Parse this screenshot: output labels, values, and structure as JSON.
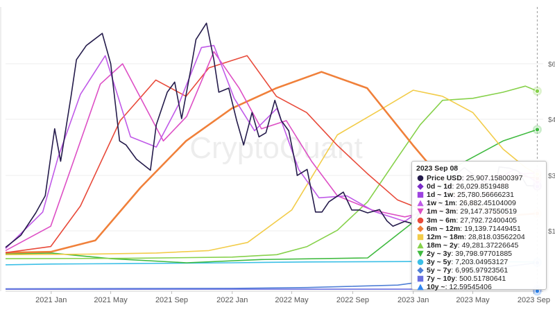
{
  "watermark": "CryptoQuant",
  "chart_data": {
    "type": "line",
    "x_ticks": [
      "2021 Jan",
      "2021 May",
      "2021 Sep",
      "2022 Jan",
      "2022 May",
      "2022 Sep",
      "2023 Jan",
      "2023 May",
      "2023 Sep"
    ],
    "y_right_ticks": [
      "$6",
      "$4",
      "$3",
      "$1"
    ],
    "xlim": [
      "2020-10-01",
      "2023-09-20"
    ],
    "series": [
      {
        "name": "Price USD",
        "color": "#241b4b",
        "marker": "circle",
        "x": [
          "2020-10-01",
          "2020-11-01",
          "2020-12-01",
          "2020-12-20",
          "2021-01-08",
          "2021-01-20",
          "2021-02-10",
          "2021-02-21",
          "2021-03-13",
          "2021-04-14",
          "2021-05-01",
          "2021-05-19",
          "2021-06-01",
          "2021-06-22",
          "2021-07-20",
          "2021-08-01",
          "2021-08-23",
          "2021-09-07",
          "2021-09-21",
          "2021-10-10",
          "2021-10-20",
          "2021-11-10",
          "2021-11-25",
          "2021-12-05",
          "2021-12-25",
          "2022-01-10",
          "2022-01-24",
          "2022-02-10",
          "2022-02-24",
          "2022-03-10",
          "2022-03-28",
          "2022-04-10",
          "2022-04-25",
          "2022-05-09",
          "2022-05-12",
          "2022-06-01",
          "2022-06-18",
          "2022-07-01",
          "2022-07-15",
          "2022-08-13",
          "2022-08-30",
          "2022-09-15",
          "2022-10-01",
          "2022-10-25",
          "2022-11-09",
          "2022-11-21",
          "2022-12-15",
          "2023-01-01",
          "2023-01-20",
          "2023-02-15",
          "2023-03-10",
          "2023-03-20",
          "2023-04-14",
          "2023-05-10",
          "2023-06-15",
          "2023-06-23",
          "2023-07-14",
          "2023-08-01",
          "2023-08-18",
          "2023-09-08"
        ],
        "y": [
          10800,
          13800,
          19300,
          23500,
          40000,
          32000,
          48000,
          57000,
          60500,
          63500,
          56000,
          37000,
          36000,
          32500,
          29800,
          41000,
          49000,
          51500,
          42500,
          55000,
          62000,
          66000,
          57000,
          49000,
          50000,
          42000,
          36000,
          44000,
          38000,
          39000,
          47000,
          42000,
          39500,
          31000,
          28500,
          30000,
          19500,
          19500,
          22000,
          24400,
          20000,
          20000,
          19300,
          20100,
          17300,
          16000,
          17200,
          16600,
          21000,
          23000,
          20000,
          28000,
          30400,
          28000,
          25500,
          30600,
          30300,
          29500,
          26000,
          25907
        ]
      },
      {
        "name": "0d ~ 1d",
        "color": "#7b2cc9",
        "marker": "diamond",
        "x": [
          "2023-09-08"
        ],
        "y": [
          26029.8519488
        ]
      },
      {
        "name": "1d ~ 1w",
        "color": "#9d43e0",
        "marker": "square",
        "x": [
          "2023-09-08"
        ],
        "y": [
          25780.56666231
        ]
      },
      {
        "name": "1w ~ 1m",
        "color": "#c05ae8",
        "marker": "triangle-up",
        "x": [
          "2020-10-01",
          "2020-12-15",
          "2021-01-15",
          "2021-03-01",
          "2021-04-20",
          "2021-06-10",
          "2021-08-01",
          "2021-09-15",
          "2021-10-31",
          "2021-11-25",
          "2022-01-05",
          "2022-02-15",
          "2022-04-01",
          "2022-05-15",
          "2022-06-25",
          "2022-08-20",
          "2022-10-15",
          "2022-12-15",
          "2023-02-15",
          "2023-04-25",
          "2023-06-15",
          "2023-07-25",
          "2023-09-08"
        ],
        "y": [
          10500,
          19500,
          33000,
          48500,
          58000,
          38000,
          35500,
          46000,
          60000,
          60500,
          47500,
          39500,
          45000,
          30000,
          23000,
          23500,
          19600,
          17200,
          22500,
          28800,
          27500,
          30000,
          26882
        ]
      },
      {
        "name": "1m ~ 3m",
        "color": "#dd4fc5",
        "marker": "triangle-down",
        "x": [
          "2020-10-01",
          "2020-12-31",
          "2021-02-15",
          "2021-04-10",
          "2021-05-25",
          "2021-08-15",
          "2021-10-01",
          "2021-11-25",
          "2022-01-15",
          "2022-03-01",
          "2022-04-20",
          "2022-06-10",
          "2022-08-01",
          "2022-10-10",
          "2022-12-15",
          "2023-02-15",
          "2023-04-25",
          "2023-06-20",
          "2023-09-08"
        ],
        "y": [
          10000,
          16000,
          32000,
          51000,
          56000,
          37000,
          43000,
          59000,
          50000,
          40000,
          42000,
          32000,
          23500,
          20000,
          18300,
          20000,
          25500,
          28500,
          29147
        ]
      },
      {
        "name": "3m ~ 6m",
        "color": "#e84a3a",
        "marker": "circle",
        "x": [
          "2020-10-01",
          "2020-12-31",
          "2021-03-01",
          "2021-05-20",
          "2021-07-31",
          "2021-09-30",
          "2021-11-15",
          "2022-01-31",
          "2022-03-31",
          "2022-05-31",
          "2022-07-31",
          "2022-09-30",
          "2022-11-30",
          "2023-01-31",
          "2023-04-01",
          "2023-06-01",
          "2023-07-31",
          "2023-09-08"
        ],
        "y": [
          9500,
          11000,
          21000,
          42000,
          52000,
          48000,
          55000,
          58000,
          48000,
          44000,
          36000,
          29000,
          22500,
          19500,
          20500,
          24000,
          28500,
          27792
        ]
      },
      {
        "name": "6m ~ 12m",
        "color": "#f0803a",
        "marker": "diamond",
        "x": [
          "2020-10-01",
          "2020-12-31",
          "2021-03-31",
          "2021-06-30",
          "2021-09-30",
          "2021-12-31",
          "2022-03-31",
          "2022-06-30",
          "2022-09-30",
          "2022-12-31",
          "2023-03-31",
          "2023-06-30",
          "2023-09-08"
        ],
        "y": [
          9500,
          9700,
          12500,
          25500,
          37000,
          45000,
          50000,
          54000,
          50000,
          36000,
          23000,
          18500,
          19139
        ]
      },
      {
        "name": "12m ~ 18m",
        "color": "#f2cc49",
        "marker": "square",
        "x": [
          "2020-10-01",
          "2021-03-01",
          "2021-08-01",
          "2021-11-15",
          "2022-02-01",
          "2022-05-01",
          "2022-08-01",
          "2022-10-31",
          "2023-01-01",
          "2023-03-01",
          "2023-05-01",
          "2023-07-01",
          "2023-08-15",
          "2023-09-08"
        ],
        "y": [
          9000,
          9100,
          9400,
          10000,
          12000,
          20000,
          38500,
          45000,
          49500,
          48000,
          44000,
          35000,
          30500,
          28818
        ]
      },
      {
        "name": "18m ~ 2y",
        "color": "#86d14a",
        "marker": "triangle-up",
        "x": [
          "2020-10-01",
          "2021-06-01",
          "2022-01-01",
          "2022-04-01",
          "2022-06-01",
          "2022-08-01",
          "2022-10-01",
          "2022-12-01",
          "2023-01-15",
          "2023-03-01",
          "2023-05-01",
          "2023-07-01",
          "2023-08-15",
          "2023-09-08"
        ],
        "y": [
          8000,
          8100,
          8400,
          9000,
          11000,
          15000,
          22000,
          33000,
          41000,
          47000,
          47500,
          49000,
          50500,
          49281
        ]
      },
      {
        "name": "2y ~ 3y",
        "color": "#3fba3f",
        "marker": "triangle-down",
        "x": [
          "2020-10-01",
          "2021-01-01",
          "2021-05-01",
          "2021-10-01",
          "2022-03-01",
          "2022-10-01",
          "2023-01-01",
          "2023-04-01",
          "2023-07-01",
          "2023-09-08"
        ],
        "y": [
          9200,
          9400,
          8000,
          7000,
          7800,
          8200,
          17000,
          31000,
          37000,
          39798
        ]
      },
      {
        "name": "3y ~ 5y",
        "color": "#3bbfe6",
        "marker": "circle",
        "x": [
          "2020-10-01",
          "2021-01-01",
          "2021-06-01",
          "2022-01-01",
          "2022-06-01",
          "2023-01-01",
          "2023-06-01",
          "2023-09-08"
        ],
        "y": [
          6500,
          6700,
          6800,
          7000,
          7200,
          7300,
          7250,
          7203
        ]
      },
      {
        "name": "5y ~ 7y",
        "color": "#4f7fd6",
        "marker": "diamond",
        "x": [
          "2020-10-01",
          "2021-06-01",
          "2022-01-01",
          "2022-06-01",
          "2022-12-01",
          "2023-03-01",
          "2023-06-01",
          "2023-09-08"
        ],
        "y": [
          600,
          650,
          700,
          900,
          1500,
          3000,
          5500,
          6995
        ]
      },
      {
        "name": "7y ~ 10y",
        "color": "#6a6fe0",
        "marker": "square",
        "x": [
          "2020-10-01",
          "2022-01-01",
          "2023-09-08"
        ],
        "y": [
          480,
          490,
          500
        ]
      },
      {
        "name": "10y ~",
        "color": "#2f86f0",
        "marker": "triangle-up",
        "x": [
          "2020-10-01",
          "2022-01-01",
          "2023-09-08"
        ],
        "y": [
          12,
          12.5,
          12.6
        ]
      }
    ],
    "tooltip": {
      "title": "2023 Sep 08",
      "rows": [
        {
          "label": "Price USD",
          "value": "25,907.15800397"
        },
        {
          "label": "0d ~ 1d",
          "value": "26,029.8519488"
        },
        {
          "label": "1d ~ 1w",
          "value": "25,780.56666231"
        },
        {
          "label": "1w ~ 1m",
          "value": "26,882.45104009"
        },
        {
          "label": "1m ~ 3m",
          "value": "29,147.37550519"
        },
        {
          "label": "3m ~ 6m",
          "value": "27,792.72400405"
        },
        {
          "label": "6m ~ 12m",
          "value": "19,139.71449451"
        },
        {
          "label": "12m ~ 18m",
          "value": "28,818.03562204"
        },
        {
          "label": "18m ~ 2y",
          "value": "49,281.37226645"
        },
        {
          "label": "2y ~ 3y",
          "value": "39,798.97701885"
        },
        {
          "label": "3y ~ 5y",
          "value": "7,203.04953127"
        },
        {
          "label": "5y ~ 7y",
          "value": "6,995.97923561"
        },
        {
          "label": "7y ~ 10y",
          "value": "500.51780641"
        },
        {
          "label": "10y ~",
          "value": "12.59545406"
        }
      ]
    }
  }
}
